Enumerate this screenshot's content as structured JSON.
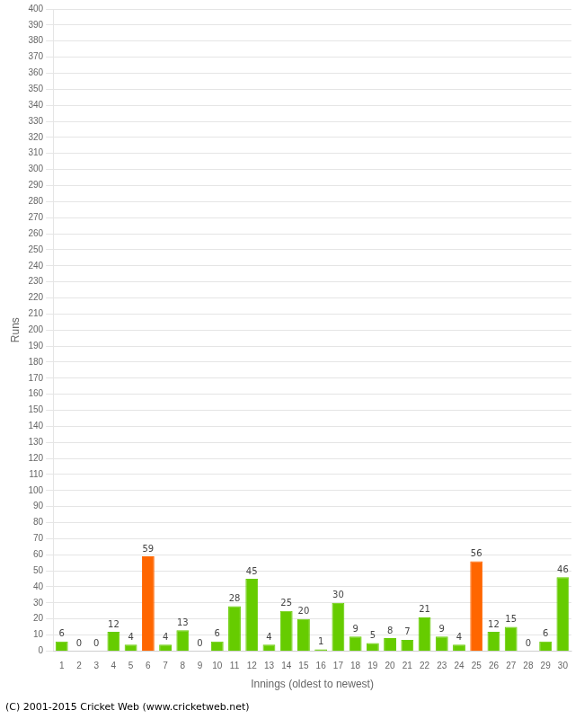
{
  "chart_data": {
    "type": "bar",
    "xlabel": "Innings (oldest to newest)",
    "ylabel": "Runs",
    "footer": "(C) 2001-2015 Cricket Web (www.cricketweb.net)",
    "categories": [
      1,
      2,
      3,
      4,
      5,
      6,
      7,
      8,
      9,
      10,
      11,
      12,
      13,
      14,
      15,
      16,
      17,
      18,
      19,
      20,
      21,
      22,
      23,
      24,
      25,
      26,
      27,
      28,
      29,
      30
    ],
    "values": [
      6,
      0,
      0,
      12,
      4,
      59,
      4,
      13,
      0,
      6,
      28,
      45,
      4,
      25,
      20,
      1,
      30,
      9,
      5,
      8,
      7,
      21,
      9,
      4,
      56,
      12,
      15,
      0,
      6,
      46
    ],
    "colors": [
      "#66cc00",
      "#66cc00",
      "#66cc00",
      "#66cc00",
      "#66cc00",
      "#ff6600",
      "#66cc00",
      "#66cc00",
      "#66cc00",
      "#66cc00",
      "#66cc00",
      "#66cc00",
      "#66cc00",
      "#66cc00",
      "#66cc00",
      "#66cc00",
      "#66cc00",
      "#66cc00",
      "#66cc00",
      "#66cc00",
      "#66cc00",
      "#66cc00",
      "#66cc00",
      "#66cc00",
      "#ff6600",
      "#66cc00",
      "#66cc00",
      "#66cc00",
      "#66cc00",
      "#66cc00"
    ],
    "ylim": [
      0,
      400
    ],
    "yticks": [
      0,
      10,
      20,
      30,
      40,
      50,
      60,
      70,
      80,
      90,
      100,
      110,
      120,
      130,
      140,
      150,
      160,
      170,
      180,
      190,
      200,
      210,
      220,
      230,
      240,
      250,
      260,
      270,
      280,
      290,
      300,
      310,
      320,
      330,
      340,
      350,
      360,
      370,
      380,
      390,
      400
    ],
    "grid": true,
    "data_labels": true
  }
}
